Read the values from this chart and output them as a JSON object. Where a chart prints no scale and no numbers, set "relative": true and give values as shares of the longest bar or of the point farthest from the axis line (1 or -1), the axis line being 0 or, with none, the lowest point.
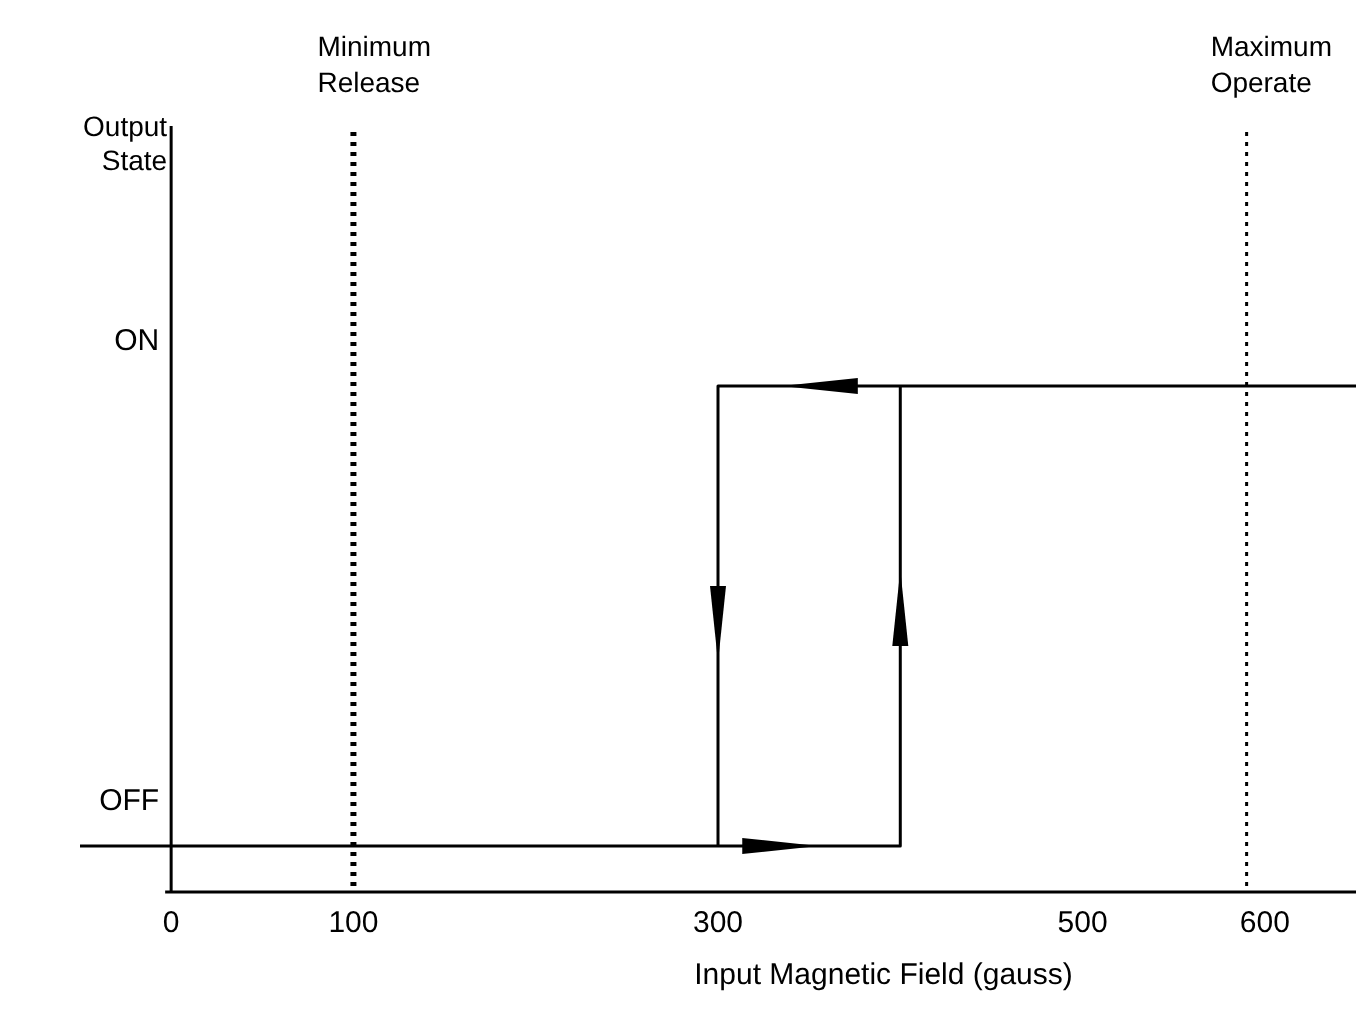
{
  "chart_data": {
    "type": "line",
    "xlabel": "Input Magnetic Field (gauss)",
    "x": [
      -50,
      400,
      400,
      650,
      300,
      300
    ],
    "series": [
      {
        "color": "#000000",
        "values": [
          0,
          0,
          1,
          1,
          1,
          0
        ]
      }
    ],
    "relative": true,
    "xlim": [
      -50,
      650
    ],
    "xticks": [
      0,
      100,
      300,
      500,
      600
    ],
    "annotations": [
      "Output State",
      "ON",
      "OFF"
    ],
    "ref_lines": [
      {
        "axis": "x",
        "value": 100,
        "label": "Minimum Release",
        "line_style": "dotted"
      },
      {
        "axis": "x",
        "value": 590,
        "label": "Maximum Operate",
        "line_style": "dotted"
      }
    ],
    "marker": "none",
    "line_style": "solid"
  }
}
